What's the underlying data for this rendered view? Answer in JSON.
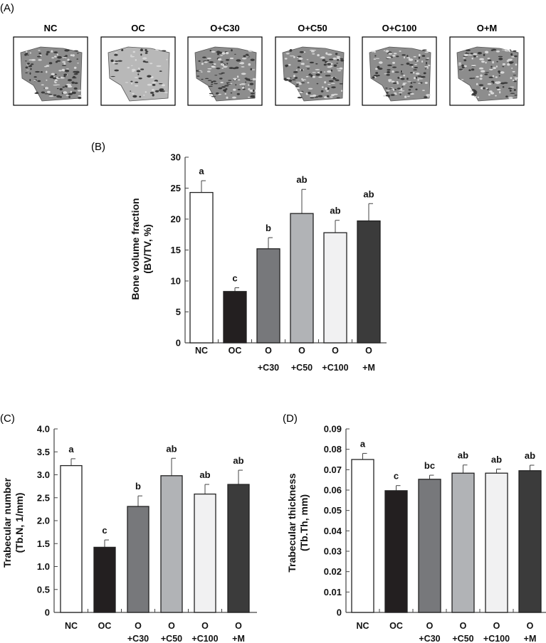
{
  "panel_a": {
    "label": "(A)",
    "groups": [
      "NC",
      "OC",
      "O+C30",
      "O+C50",
      "O+C100",
      "O+M"
    ],
    "image_kind": "micro-CT 3D trabecular bone rendering"
  },
  "bar_colors": [
    "#ffffff",
    "#231f20",
    "#77787b",
    "#b1b3b6",
    "#f1f1f2",
    "#3b3b3b"
  ],
  "chart_data": [
    {
      "panel": "(B)",
      "type": "bar",
      "categories": [
        [
          "NC",
          ""
        ],
        [
          "OC",
          ""
        ],
        [
          "O",
          "+C30"
        ],
        [
          "O",
          "+C50"
        ],
        [
          "O",
          "+C100"
        ],
        [
          "O",
          "+M"
        ]
      ],
      "values": [
        24.3,
        8.3,
        15.2,
        20.9,
        17.8,
        19.7
      ],
      "errors": [
        1.9,
        0.6,
        1.8,
        3.9,
        2.0,
        2.8
      ],
      "significance": [
        "a",
        "c",
        "b",
        "ab",
        "ab",
        "ab"
      ],
      "ylabel": [
        "Bone volume fraction",
        "(BV/TV, %)"
      ],
      "ylim": [
        0,
        30
      ],
      "yticks": [
        "0",
        "5",
        "10",
        "15",
        "20",
        "25",
        "30"
      ],
      "grid": false
    },
    {
      "panel": "(C)",
      "type": "bar",
      "categories": [
        [
          "NC",
          ""
        ],
        [
          "OC",
          ""
        ],
        [
          "O",
          "+C30"
        ],
        [
          "O",
          "+C50"
        ],
        [
          "O",
          "+C100"
        ],
        [
          "O",
          "+M"
        ]
      ],
      "values": [
        3.2,
        1.42,
        2.31,
        2.98,
        2.58,
        2.79
      ],
      "errors": [
        0.15,
        0.16,
        0.23,
        0.38,
        0.21,
        0.31
      ],
      "significance": [
        "a",
        "c",
        "b",
        "ab",
        "ab",
        "ab"
      ],
      "ylabel": [
        "Trabecular number",
        "(Tb.N, 1/mm)"
      ],
      "ylim": [
        0,
        4.0
      ],
      "yticks": [
        "0",
        "0.5",
        "1.0",
        "1.5",
        "2.0",
        "2.5",
        "3.0",
        "3.5",
        "4.0"
      ],
      "grid": false
    },
    {
      "panel": "(D)",
      "type": "bar",
      "categories": [
        [
          "NC",
          ""
        ],
        [
          "OC",
          ""
        ],
        [
          "O",
          "+C30"
        ],
        [
          "O",
          "+C50"
        ],
        [
          "O",
          "+C100"
        ],
        [
          "O",
          "+M"
        ]
      ],
      "values": [
        0.075,
        0.0597,
        0.0653,
        0.0683,
        0.0683,
        0.0695
      ],
      "errors": [
        0.003,
        0.0025,
        0.002,
        0.004,
        0.002,
        0.0027
      ],
      "significance": [
        "a",
        "c",
        "bc",
        "ab",
        "ab",
        "ab"
      ],
      "ylabel": [
        "Trabecular thickness",
        "(Tb.Th, mm)"
      ],
      "ylim": [
        0,
        0.09
      ],
      "yticks": [
        "0",
        "0.01",
        "0.02",
        "0.03",
        "0.04",
        "0.05",
        "0.06",
        "0.07",
        "0.08",
        "0.09"
      ],
      "grid": false
    }
  ]
}
